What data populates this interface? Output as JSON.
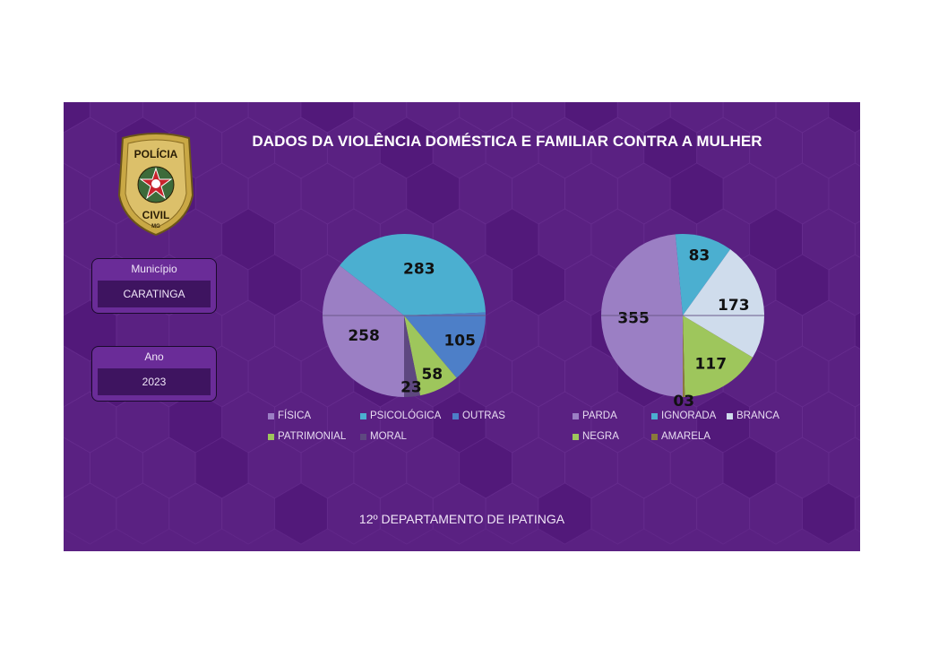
{
  "title": "DADOS DA VIOLÊNCIA DOMÉSTICA E FAMILIAR CONTRA A MULHER",
  "badge": {
    "top_text": "POLÍCIA",
    "bottom_text": "CIVIL",
    "state": "MG"
  },
  "filters": {
    "municipio": {
      "label": "Município",
      "value": "CARATINGA"
    },
    "ano": {
      "label": "Ano",
      "value": "2023"
    }
  },
  "footer": "12º DEPARTAMENTO DE IPATINGA",
  "colors": {
    "background": "#5a2182",
    "accent": "#6a2c98"
  },
  "chart_data": [
    {
      "type": "pie",
      "labels": [
        "FÍSICA",
        "PSICOLÓGICA",
        "OUTRAS",
        "PATRIMONIAL",
        "MORAL"
      ],
      "values": [
        258,
        283,
        105,
        58,
        23
      ],
      "data_labels": [
        "258",
        "283",
        "105",
        "58",
        "23"
      ],
      "colors": [
        "#9b7fc4",
        "#4bafd0",
        "#4d7fc8",
        "#9ec65c",
        "#5e4880"
      ],
      "legend": "bottom"
    },
    {
      "type": "pie",
      "labels": [
        "PARDA",
        "IGNORADA",
        "BRANCA",
        "NEGRA",
        "AMARELA"
      ],
      "values": [
        355,
        83,
        173,
        117,
        3
      ],
      "data_labels": [
        "355",
        "83",
        "173",
        "117",
        "03"
      ],
      "colors": [
        "#9b7fc4",
        "#4bafd0",
        "#cfdcec",
        "#9ec65c",
        "#8a7a3a"
      ],
      "legend": "bottom"
    }
  ]
}
